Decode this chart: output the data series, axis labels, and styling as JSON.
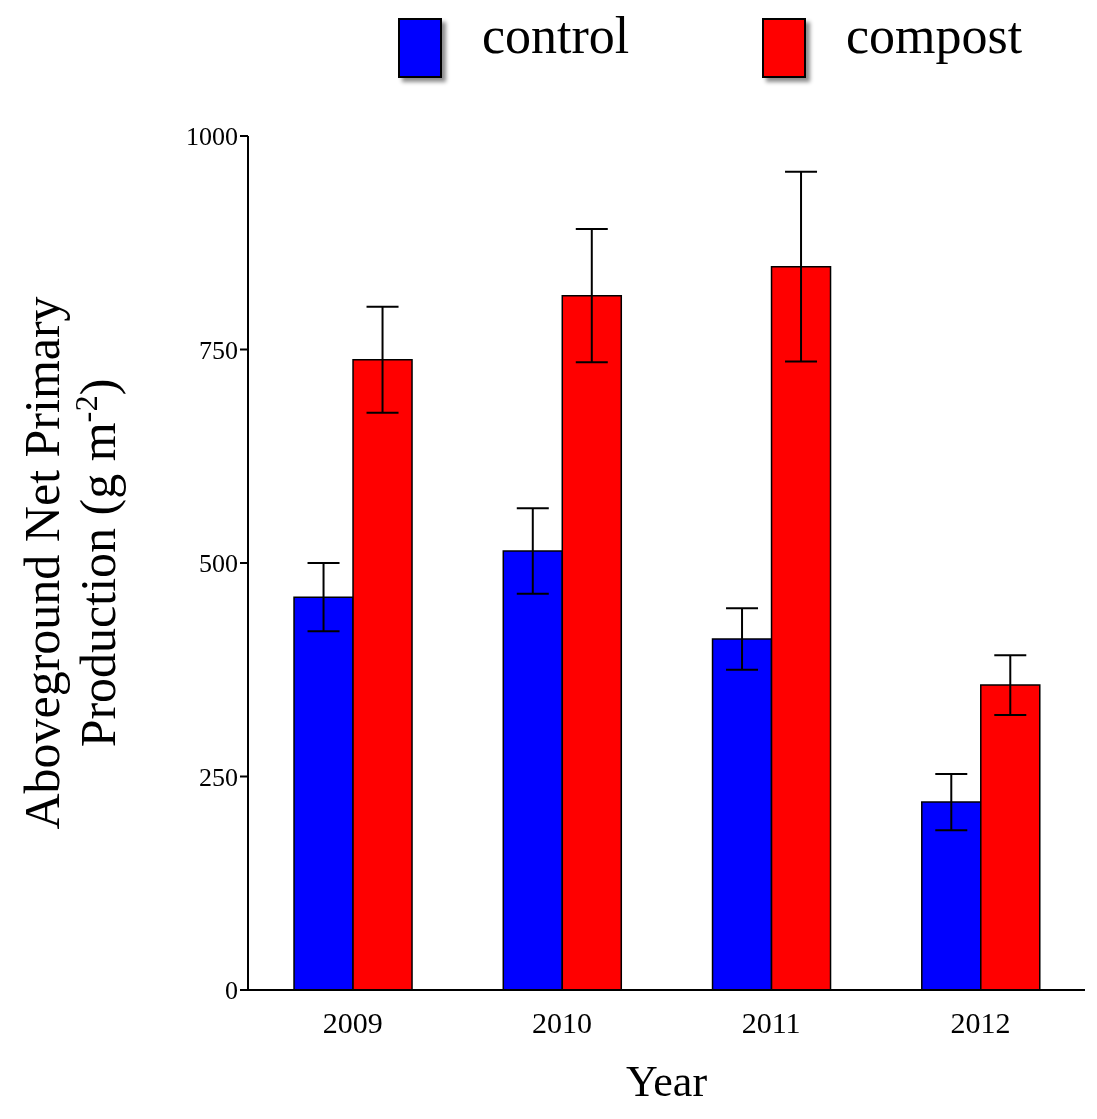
{
  "chart_data": {
    "type": "bar",
    "xlabel": "Year",
    "ylabel": "Aboveground Net Primary Production (g m$^{-2}$)",
    "categories": [
      "2009",
      "2010",
      "2011",
      "2012"
    ],
    "series": [
      {
        "name": "control",
        "color": "#0000ff",
        "values": [
          460,
          514,
          411,
          220
        ],
        "errors": [
          40,
          50,
          36,
          33
        ]
      },
      {
        "name": "compost",
        "color": "#ff0000",
        "values": [
          738,
          813,
          847,
          357
        ],
        "errors": [
          62,
          78,
          111,
          35
        ]
      }
    ],
    "ylim": [
      0,
      1000
    ],
    "yticks": [
      0,
      250,
      500,
      750,
      1000
    ],
    "grid": false,
    "legend": "top"
  }
}
